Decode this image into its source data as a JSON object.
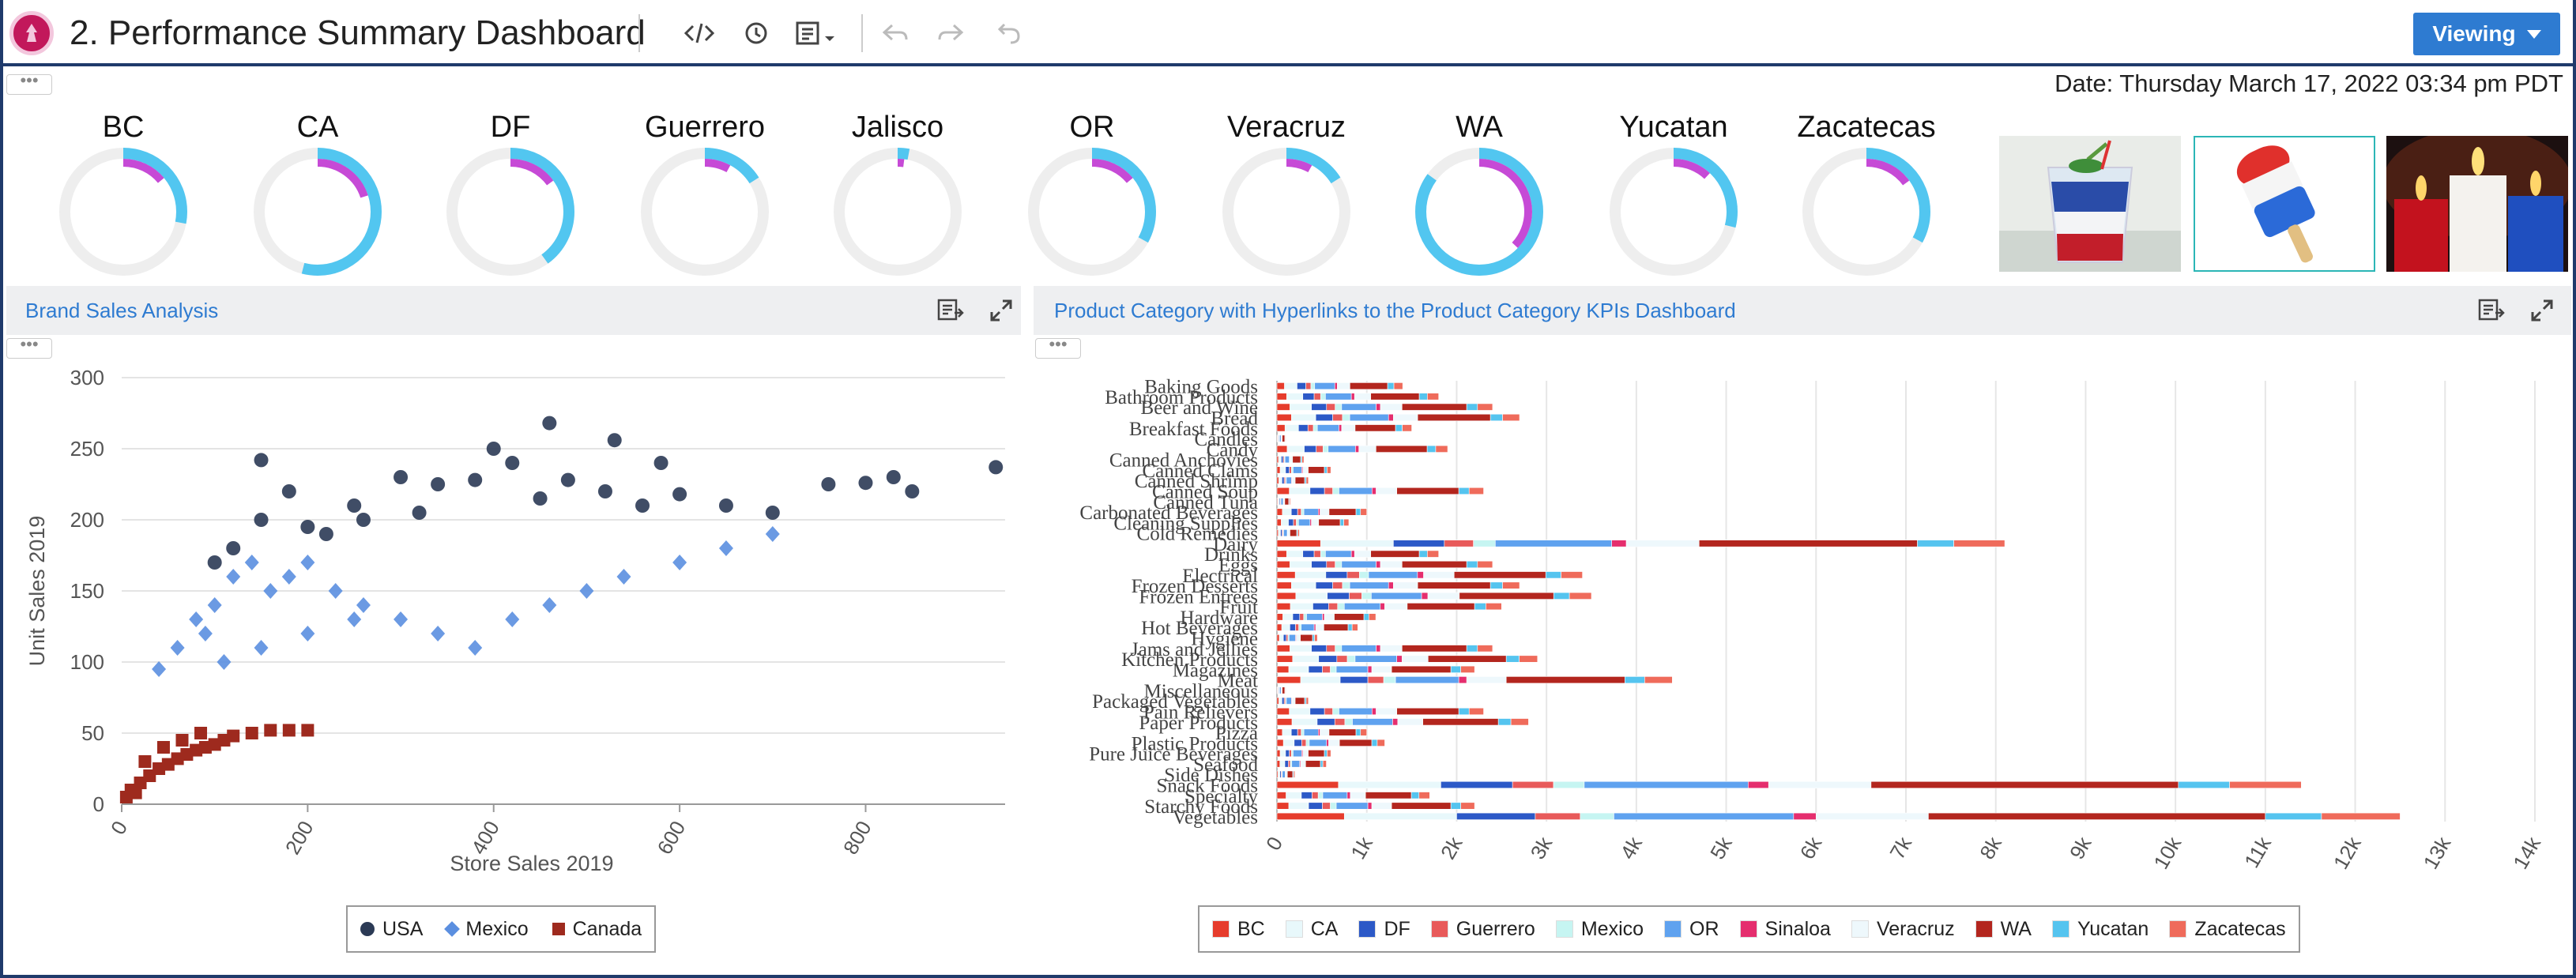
{
  "app": {
    "title": "2. Performance Summary Dashboard",
    "mode_button": "Viewing",
    "date_label": "Date: Thursday March 17, 2022 03:34 pm PDT",
    "menu_dots": "•••"
  },
  "colors": {
    "accent": "#2e7bd1",
    "header_border": "#1f3a6b",
    "gauge_track": "#eeeeee",
    "gauge_outer": "#52c6f0",
    "gauge_inner": "#c64ad6"
  },
  "gauges": [
    {
      "label": "BC",
      "outer": 0.28,
      "inner": 0.14
    },
    {
      "label": "CA",
      "outer": 0.54,
      "inner": 0.2
    },
    {
      "label": "DF",
      "outer": 0.4,
      "inner": 0.15
    },
    {
      "label": "Guerrero",
      "outer": 0.16,
      "inner": 0.08
    },
    {
      "label": "Jalisco",
      "outer": 0.03,
      "inner": 0.02
    },
    {
      "label": "OR",
      "outer": 0.33,
      "inner": 0.14
    },
    {
      "label": "Veracruz",
      "outer": 0.16,
      "inner": 0.08
    },
    {
      "label": "WA",
      "outer": 0.85,
      "inner": 0.37
    },
    {
      "label": "Yucatan",
      "outer": 0.29,
      "inner": 0.12
    },
    {
      "label": "Zacatecas",
      "outer": 0.33,
      "inner": 0.15
    }
  ],
  "images": [
    {
      "name": "layered-drink-image"
    },
    {
      "name": "popsicle-image"
    },
    {
      "name": "candles-image"
    }
  ],
  "brand_panel": {
    "title": "Brand Sales Analysis",
    "chart_data": {
      "type": "scatter",
      "title": "",
      "xlabel": "Store Sales 2019",
      "ylabel": "Unit Sales 2019",
      "xlim": [
        0,
        950
      ],
      "ylim": [
        0,
        300
      ],
      "x_ticks": [
        "0",
        "200",
        "400",
        "600",
        "800"
      ],
      "y_ticks": [
        "0",
        "50",
        "100",
        "150",
        "200",
        "250",
        "300"
      ],
      "grid": "horizontal",
      "legend_position": "bottom",
      "series": [
        {
          "name": "USA",
          "color": "#2b3a55",
          "marker": "circle",
          "points": [
            [
              150,
              242
            ],
            [
              150,
              200
            ],
            [
              180,
              220
            ],
            [
              220,
              190
            ],
            [
              250,
              210
            ],
            [
              300,
              230
            ],
            [
              340,
              225
            ],
            [
              380,
              228
            ],
            [
              420,
              240
            ],
            [
              450,
              215
            ],
            [
              480,
              228
            ],
            [
              520,
              220
            ],
            [
              560,
              210
            ],
            [
              600,
              218
            ],
            [
              650,
              210
            ],
            [
              700,
              205
            ],
            [
              760,
              225
            ],
            [
              800,
              226
            ],
            [
              830,
              230
            ],
            [
              850,
              220
            ],
            [
              940,
              237
            ],
            [
              460,
              268
            ],
            [
              530,
              256
            ],
            [
              400,
              250
            ],
            [
              120,
              180
            ],
            [
              100,
              170
            ],
            [
              200,
              195
            ],
            [
              260,
              200
            ],
            [
              320,
              205
            ],
            [
              580,
              240
            ]
          ]
        },
        {
          "name": "Mexico",
          "color": "#5b8fe0",
          "marker": "diamond",
          "points": [
            [
              40,
              95
            ],
            [
              60,
              110
            ],
            [
              80,
              130
            ],
            [
              100,
              140
            ],
            [
              120,
              160
            ],
            [
              140,
              170
            ],
            [
              160,
              150
            ],
            [
              180,
              160
            ],
            [
              200,
              170
            ],
            [
              230,
              150
            ],
            [
              260,
              140
            ],
            [
              300,
              130
            ],
            [
              340,
              120
            ],
            [
              380,
              110
            ],
            [
              420,
              130
            ],
            [
              460,
              140
            ],
            [
              500,
              150
            ],
            [
              540,
              160
            ],
            [
              600,
              170
            ],
            [
              650,
              180
            ],
            [
              700,
              190
            ],
            [
              90,
              120
            ],
            [
              110,
              100
            ],
            [
              150,
              110
            ],
            [
              200,
              120
            ],
            [
              250,
              130
            ]
          ]
        },
        {
          "name": "Canada",
          "color": "#9e2a1e",
          "marker": "square",
          "points": [
            [
              5,
              5
            ],
            [
              10,
              10
            ],
            [
              15,
              8
            ],
            [
              20,
              15
            ],
            [
              30,
              20
            ],
            [
              40,
              25
            ],
            [
              50,
              28
            ],
            [
              60,
              32
            ],
            [
              70,
              35
            ],
            [
              80,
              38
            ],
            [
              90,
              40
            ],
            [
              100,
              42
            ],
            [
              110,
              45
            ],
            [
              120,
              48
            ],
            [
              140,
              50
            ],
            [
              160,
              52
            ],
            [
              180,
              52
            ],
            [
              200,
              52
            ],
            [
              25,
              30
            ],
            [
              45,
              40
            ],
            [
              65,
              45
            ],
            [
              85,
              50
            ]
          ]
        }
      ]
    }
  },
  "category_panel": {
    "title": "Product Category with Hyperlinks to the Product Category KPIs Dashboard",
    "chart_data": {
      "type": "bar",
      "orientation": "horizontal",
      "stacked": true,
      "title": "",
      "xlim": [
        0,
        14000
      ],
      "x_ticks": [
        "0",
        "1k",
        "2k",
        "3k",
        "4k",
        "5k",
        "6k",
        "7k",
        "8k",
        "9k",
        "10k",
        "11k",
        "12k",
        "13k",
        "14k"
      ],
      "legend_position": "bottom",
      "categories": [
        "Baking Goods",
        "Bathroom Products",
        "Beer and Wine",
        "Bread",
        "Breakfast Foods",
        "Candles",
        "Candy",
        "Canned Anchovies",
        "Canned Clams",
        "Canned Shrimp",
        "Canned Soup",
        "Canned Tuna",
        "Carbonated Beverages",
        "Cleaning Supplies",
        "Cold Remedies",
        "Dairy",
        "Drinks",
        "Eggs",
        "Electrical",
        "Frozen Desserts",
        "Frozen Entrees",
        "Fruit",
        "Hardware",
        "Hot Beverages",
        "Hygiene",
        "Jams and Jellies",
        "Kitchen Products",
        "Magazines",
        "Meat",
        "Miscellaneous",
        "Packaged Vegetables",
        "Pain Relievers",
        "Paper Products",
        "Pizza",
        "Plastic Products",
        "Pure Juice Beverages",
        "Seafood",
        "Side Dishes",
        "Snack Foods",
        "Specialty",
        "Starchy Foods",
        "Vegetables"
      ],
      "totals": [
        1400,
        1800,
        2400,
        2700,
        1500,
        100,
        1900,
        300,
        600,
        350,
        2300,
        150,
        1000,
        800,
        250,
        8100,
        1800,
        2400,
        3400,
        2700,
        3500,
        2500,
        1100,
        900,
        450,
        2400,
        2900,
        2200,
        4400,
        100,
        350,
        2300,
        2800,
        1000,
        1200,
        600,
        550,
        200,
        11400,
        1700,
        2200,
        12500
      ],
      "series": [
        {
          "name": "BC",
          "color": "#e63c2c",
          "shares": [
            0.06,
            0.06,
            0.06,
            0.06,
            0.06,
            0.06,
            0.06,
            0.06,
            0.06,
            0.06,
            0.06,
            0.06,
            0.06,
            0.06,
            0.06,
            0.06,
            0.06,
            0.06,
            0.06,
            0.06,
            0.06,
            0.06,
            0.06,
            0.06,
            0.06,
            0.06,
            0.06,
            0.06,
            0.06,
            0.06,
            0.06,
            0.06,
            0.06,
            0.06,
            0.06,
            0.06,
            0.06,
            0.06,
            0.06,
            0.06,
            0.06,
            0.06
          ]
        },
        {
          "name": "CA",
          "color": "#e8f8fb",
          "shares": [
            0.1,
            0.1,
            0.1,
            0.1,
            0.1,
            0.1,
            0.1,
            0.1,
            0.1,
            0.1,
            0.1,
            0.1,
            0.1,
            0.1,
            0.1,
            0.1,
            0.1,
            0.1,
            0.1,
            0.1,
            0.1,
            0.1,
            0.1,
            0.1,
            0.1,
            0.1,
            0.1,
            0.1,
            0.1,
            0.1,
            0.1,
            0.1,
            0.1,
            0.1,
            0.1,
            0.1,
            0.1,
            0.1,
            0.1,
            0.1,
            0.1,
            0.1
          ]
        },
        {
          "name": "DF",
          "color": "#2c59c7",
          "shares": [
            0.07,
            0.07,
            0.07,
            0.07,
            0.07,
            0.07,
            0.07,
            0.07,
            0.07,
            0.07,
            0.07,
            0.07,
            0.07,
            0.07,
            0.07,
            0.07,
            0.07,
            0.07,
            0.07,
            0.07,
            0.07,
            0.07,
            0.07,
            0.07,
            0.07,
            0.07,
            0.07,
            0.07,
            0.07,
            0.07,
            0.07,
            0.07,
            0.07,
            0.07,
            0.07,
            0.07,
            0.07,
            0.07,
            0.07,
            0.07,
            0.07,
            0.07
          ]
        },
        {
          "name": "Guerrero",
          "color": "#e85a5a",
          "shares": [
            0.04,
            0.04,
            0.04,
            0.04,
            0.04,
            0.04,
            0.04,
            0.04,
            0.04,
            0.04,
            0.04,
            0.04,
            0.04,
            0.04,
            0.04,
            0.04,
            0.04,
            0.04,
            0.04,
            0.04,
            0.04,
            0.04,
            0.04,
            0.04,
            0.04,
            0.04,
            0.04,
            0.04,
            0.04,
            0.04,
            0.04,
            0.04,
            0.04,
            0.04,
            0.04,
            0.04,
            0.04,
            0.04,
            0.04,
            0.04,
            0.04,
            0.04
          ]
        },
        {
          "name": "Mexico",
          "color": "#c6f5f2",
          "shares": [
            0.03,
            0.03,
            0.03,
            0.03,
            0.03,
            0.03,
            0.03,
            0.03,
            0.03,
            0.03,
            0.03,
            0.03,
            0.03,
            0.03,
            0.03,
            0.03,
            0.03,
            0.03,
            0.03,
            0.03,
            0.03,
            0.03,
            0.03,
            0.03,
            0.03,
            0.03,
            0.03,
            0.03,
            0.03,
            0.03,
            0.03,
            0.03,
            0.03,
            0.03,
            0.03,
            0.03,
            0.03,
            0.03,
            0.03,
            0.03,
            0.03,
            0.03
          ]
        },
        {
          "name": "OR",
          "color": "#5fa2ef",
          "shares": [
            0.16,
            0.16,
            0.16,
            0.16,
            0.16,
            0.16,
            0.16,
            0.16,
            0.16,
            0.16,
            0.16,
            0.16,
            0.16,
            0.16,
            0.16,
            0.16,
            0.16,
            0.16,
            0.16,
            0.16,
            0.16,
            0.16,
            0.16,
            0.16,
            0.16,
            0.16,
            0.16,
            0.16,
            0.16,
            0.16,
            0.16,
            0.16,
            0.16,
            0.16,
            0.16,
            0.16,
            0.16,
            0.16,
            0.16,
            0.16,
            0.16,
            0.16
          ]
        },
        {
          "name": "Sinaloa",
          "color": "#e52e6e",
          "shares": [
            0.02,
            0.02,
            0.02,
            0.02,
            0.02,
            0.02,
            0.02,
            0.02,
            0.02,
            0.02,
            0.02,
            0.02,
            0.02,
            0.02,
            0.02,
            0.02,
            0.02,
            0.02,
            0.02,
            0.02,
            0.02,
            0.02,
            0.02,
            0.02,
            0.02,
            0.02,
            0.02,
            0.02,
            0.02,
            0.02,
            0.02,
            0.02,
            0.02,
            0.02,
            0.02,
            0.02,
            0.02,
            0.02,
            0.02,
            0.02,
            0.02,
            0.02
          ]
        },
        {
          "name": "Veracruz",
          "color": "#eef8fc",
          "shares": [
            0.1,
            0.1,
            0.1,
            0.1,
            0.1,
            0.1,
            0.1,
            0.1,
            0.1,
            0.1,
            0.1,
            0.1,
            0.1,
            0.1,
            0.1,
            0.1,
            0.1,
            0.1,
            0.1,
            0.1,
            0.1,
            0.1,
            0.1,
            0.1,
            0.1,
            0.1,
            0.1,
            0.1,
            0.1,
            0.1,
            0.1,
            0.1,
            0.1,
            0.1,
            0.1,
            0.1,
            0.1,
            0.1,
            0.1,
            0.1,
            0.1,
            0.1
          ]
        },
        {
          "name": "WA",
          "color": "#b3261e",
          "shares": [
            0.3,
            0.3,
            0.3,
            0.3,
            0.3,
            0.3,
            0.3,
            0.3,
            0.3,
            0.3,
            0.3,
            0.3,
            0.3,
            0.3,
            0.3,
            0.3,
            0.3,
            0.3,
            0.3,
            0.3,
            0.3,
            0.3,
            0.3,
            0.3,
            0.3,
            0.3,
            0.3,
            0.3,
            0.3,
            0.3,
            0.3,
            0.3,
            0.3,
            0.3,
            0.3,
            0.3,
            0.3,
            0.3,
            0.3,
            0.3,
            0.3,
            0.3
          ]
        },
        {
          "name": "Yucatan",
          "color": "#55c4ef",
          "shares": [
            0.05,
            0.05,
            0.05,
            0.05,
            0.05,
            0.05,
            0.05,
            0.05,
            0.05,
            0.05,
            0.05,
            0.05,
            0.05,
            0.05,
            0.05,
            0.05,
            0.05,
            0.05,
            0.05,
            0.05,
            0.05,
            0.05,
            0.05,
            0.05,
            0.05,
            0.05,
            0.05,
            0.05,
            0.05,
            0.05,
            0.05,
            0.05,
            0.05,
            0.05,
            0.05,
            0.05,
            0.05,
            0.05,
            0.05,
            0.05,
            0.05,
            0.05
          ]
        },
        {
          "name": "Zacatecas",
          "color": "#ef6b5b",
          "shares": [
            0.07,
            0.07,
            0.07,
            0.07,
            0.07,
            0.07,
            0.07,
            0.07,
            0.07,
            0.07,
            0.07,
            0.07,
            0.07,
            0.07,
            0.07,
            0.07,
            0.07,
            0.07,
            0.07,
            0.07,
            0.07,
            0.07,
            0.07,
            0.07,
            0.07,
            0.07,
            0.07,
            0.07,
            0.07,
            0.07,
            0.07,
            0.07,
            0.07,
            0.07,
            0.07,
            0.07,
            0.07,
            0.07,
            0.07,
            0.07,
            0.07,
            0.07
          ]
        }
      ]
    }
  }
}
